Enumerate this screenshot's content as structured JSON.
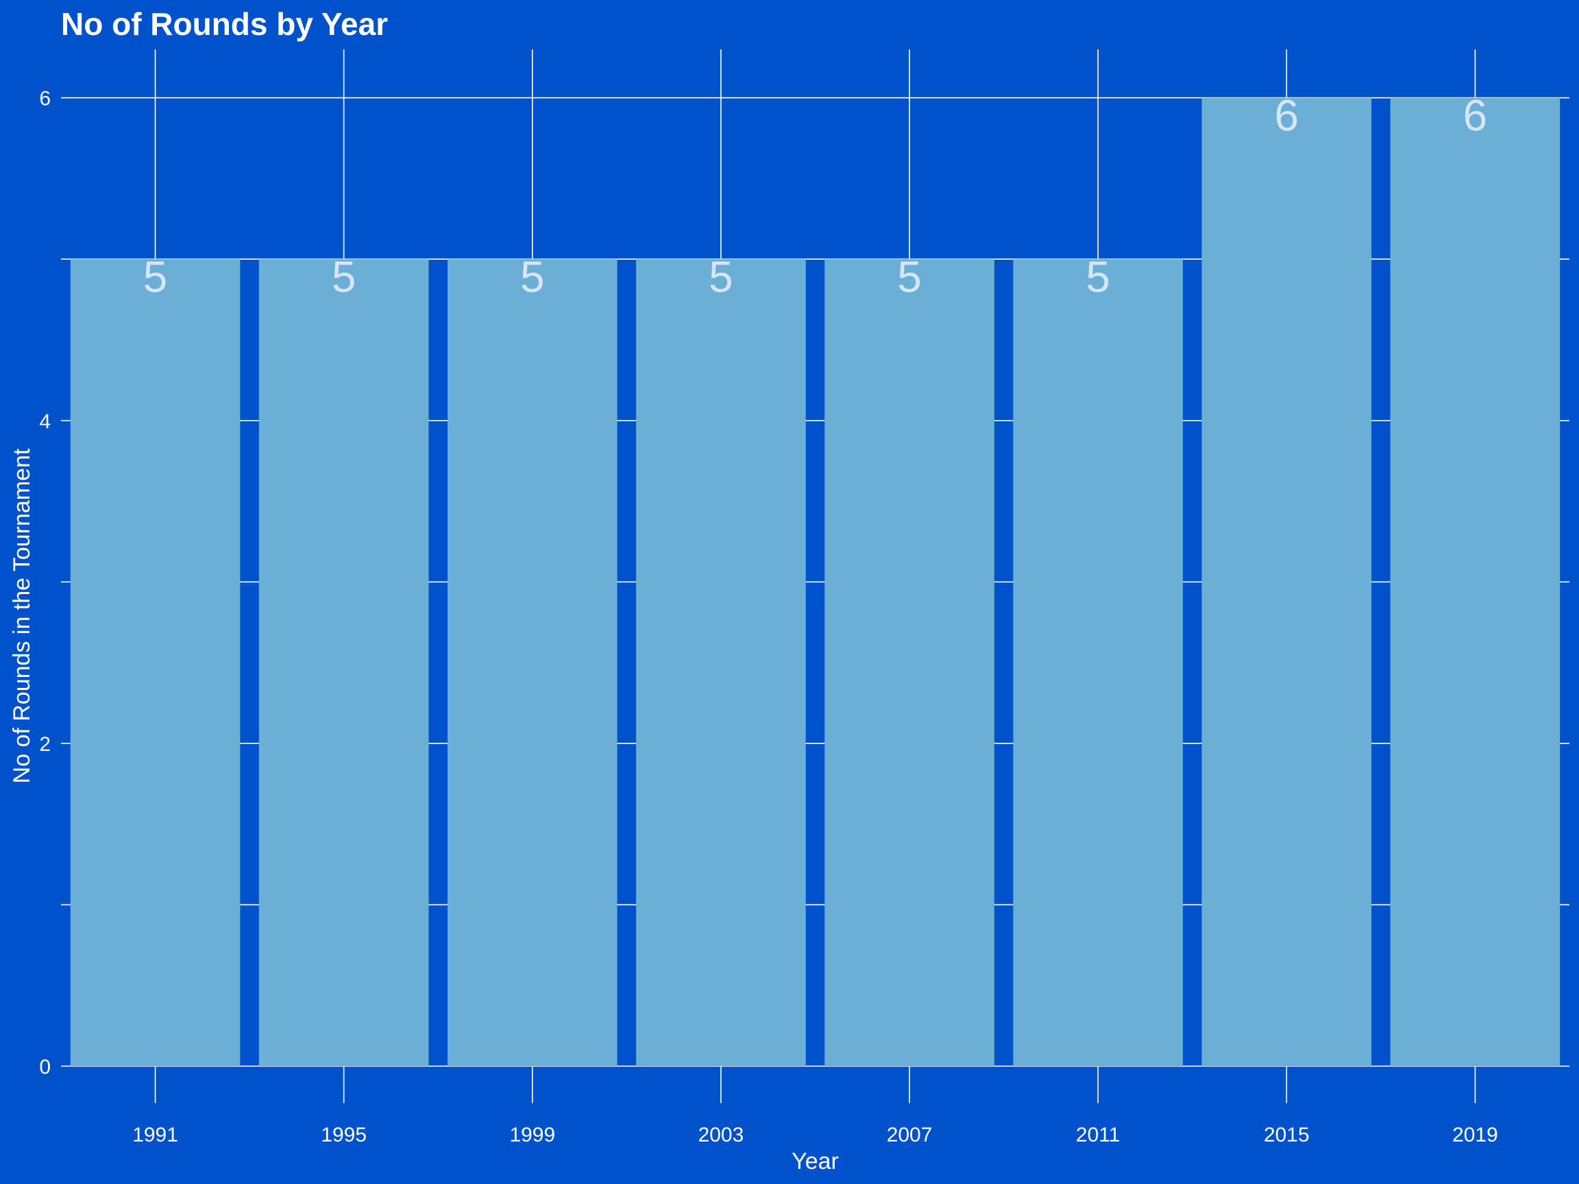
{
  "chart_data": {
    "type": "bar",
    "title": "No of Rounds by Year",
    "xlabel": "Year",
    "ylabel": "No of Rounds in the Tournament",
    "categories": [
      "1991",
      "1995",
      "1999",
      "2003",
      "2007",
      "2011",
      "2015",
      "2019"
    ],
    "values": [
      5,
      5,
      5,
      5,
      5,
      5,
      6,
      6
    ],
    "data_labels": [
      "5",
      "5",
      "5",
      "5",
      "5",
      "5",
      "6",
      "6"
    ],
    "ylim": [
      0,
      6.3
    ],
    "yticks": [
      0,
      2,
      4,
      6
    ],
    "ytick_labels": [
      "0",
      "2",
      "4",
      "6"
    ],
    "grid": true,
    "legend": "none",
    "colors": {
      "background": "#0052cc",
      "bar": "#6baed6",
      "bar_label": "#d6e6f5",
      "grid": "#ffffff",
      "text": "#ffffff"
    }
  }
}
